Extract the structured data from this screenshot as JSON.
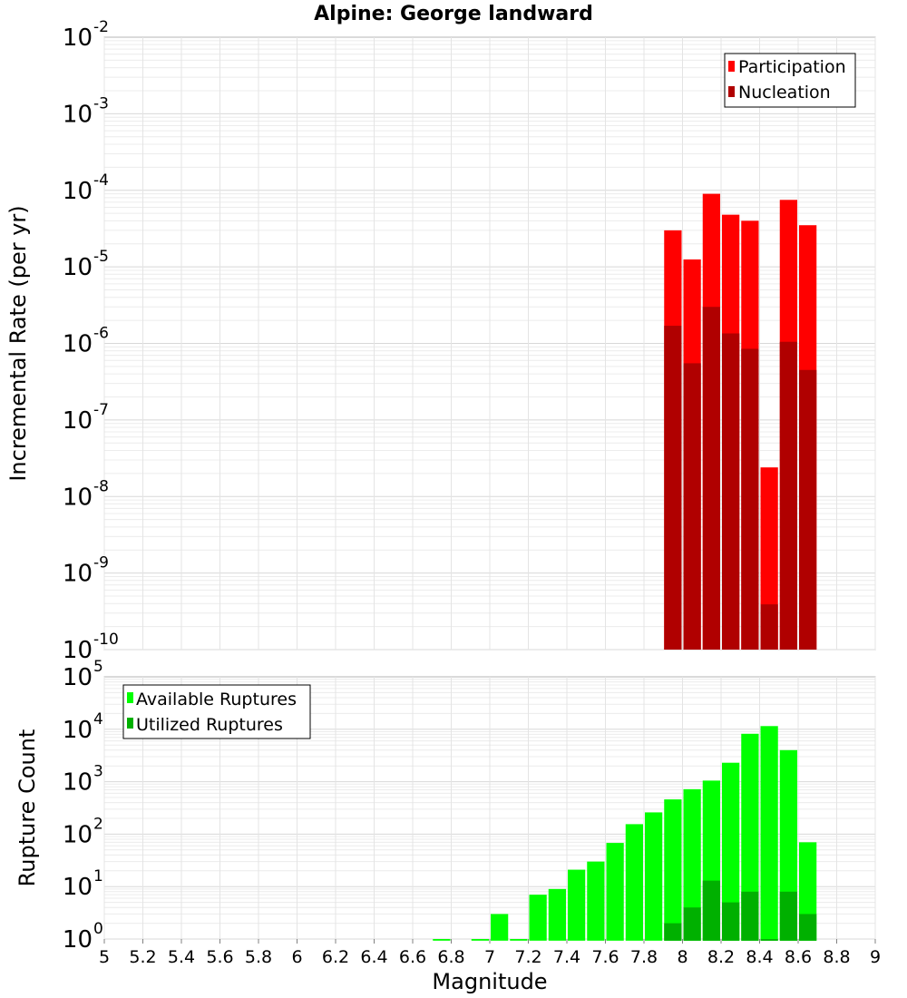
{
  "chart_data": [
    {
      "type": "bar",
      "title": "Alpine: George landward",
      "ylabel": "Incremental Rate (per yr)",
      "yscale": "log",
      "ylim_exp": [
        -10,
        -2
      ],
      "ytick_exponents": [
        "-10",
        "-9",
        "-8",
        "-7",
        "-6",
        "-5",
        "-4",
        "-3",
        "-2"
      ],
      "xlim": [
        5,
        9
      ],
      "grid": true,
      "legend_position": "top-right",
      "x": [
        7.95,
        8.05,
        8.15,
        8.25,
        8.35,
        8.45,
        8.55,
        8.65
      ],
      "series": [
        {
          "name": "Participation",
          "color": "#ff0000",
          "values": [
            3e-05,
            1.25e-05,
            9e-05,
            4.8e-05,
            4e-05,
            2.4e-08,
            7.5e-05,
            3.5e-05
          ]
        },
        {
          "name": "Nucleation",
          "color": "#b00000",
          "values": [
            1.7e-06,
            5.5e-07,
            3e-06,
            1.35e-06,
            8.5e-07,
            3.9e-10,
            1.05e-06,
            4.5e-07
          ]
        }
      ]
    },
    {
      "type": "bar",
      "xlabel": "Magnitude",
      "ylabel": "Rupture Count",
      "yscale": "log",
      "ylim_exp": [
        0,
        5
      ],
      "ytick_exponents": [
        "0",
        "1",
        "2",
        "3",
        "4",
        "5"
      ],
      "xlim": [
        5,
        9
      ],
      "xtick_labels": [
        "5",
        "5.2",
        "5.4",
        "5.6",
        "5.8",
        "6",
        "6.2",
        "6.4",
        "6.6",
        "6.8",
        "7",
        "7.2",
        "7.4",
        "7.6",
        "7.8",
        "8",
        "8.2",
        "8.4",
        "8.6",
        "8.8",
        "9"
      ],
      "grid": true,
      "legend_position": "top-left",
      "x": [
        6.75,
        6.95,
        7.05,
        7.15,
        7.25,
        7.35,
        7.45,
        7.55,
        7.65,
        7.75,
        7.85,
        7.95,
        8.05,
        8.15,
        8.25,
        8.35,
        8.45,
        8.55,
        8.65
      ],
      "series": [
        {
          "name": "Available Ruptures",
          "color": "#00ff00",
          "values": [
            1,
            1,
            3,
            1,
            7,
            9,
            21,
            30,
            68,
            155,
            260,
            460,
            720,
            1050,
            2300,
            8200,
            11500,
            4000,
            70
          ]
        },
        {
          "name": "Utilized Ruptures",
          "color": "#00b000",
          "values": [
            null,
            null,
            null,
            null,
            null,
            null,
            null,
            null,
            null,
            null,
            null,
            2,
            4,
            13,
            5,
            8,
            1,
            8,
            3
          ]
        }
      ]
    }
  ]
}
